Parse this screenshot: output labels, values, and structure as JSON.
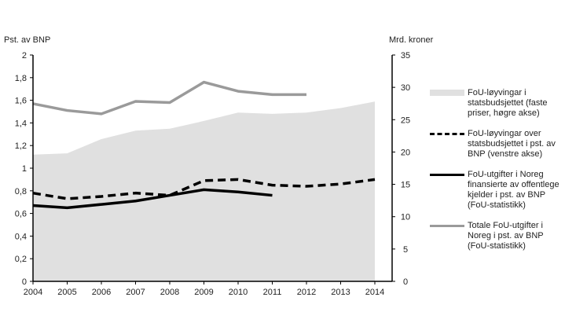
{
  "chart_data": {
    "type": "line",
    "ylabel_left": "Pst. av BNP",
    "ylabel_right": "Mrd. kroner",
    "x": [
      2004,
      2005,
      2006,
      2007,
      2008,
      2009,
      2010,
      2011,
      2012,
      2013,
      2014
    ],
    "ylim_left": [
      0,
      2
    ],
    "ylim_right": [
      0,
      35
    ],
    "yticks_left": [
      "0",
      "0,2",
      "0,4",
      "0,6",
      "0,8",
      "1",
      "1,2",
      "1,4",
      "1,6",
      "1,8",
      "2"
    ],
    "yticks_right": [
      "0",
      "5",
      "10",
      "15",
      "20",
      "25",
      "30",
      "35"
    ],
    "grid": false,
    "legend_position": "right",
    "series": [
      {
        "name": "FoU-løyvingar i statsbudsjettet (faste priser, høgre akse)",
        "axis": "right",
        "style": "area",
        "color": "#e0e0e0",
        "values": [
          19.6,
          19.8,
          22.0,
          23.3,
          23.6,
          24.8,
          26.1,
          25.9,
          26.1,
          26.8,
          27.8
        ]
      },
      {
        "name": "FoU-løyvingar over statsbudsjettet i pst. av BNP (venstre akse)",
        "axis": "left",
        "style": "dashed",
        "color": "#000000",
        "values": [
          0.78,
          0.73,
          0.75,
          0.78,
          0.76,
          0.89,
          0.9,
          0.85,
          0.84,
          0.86,
          0.9
        ]
      },
      {
        "name": "FoU-utgifter i Noreg finansierte av offentlege kjelder i pst. av BNP (FoU-statistikk)",
        "axis": "left",
        "style": "solid",
        "color": "#000000",
        "values": [
          0.67,
          0.65,
          0.68,
          0.71,
          0.76,
          0.81,
          0.79,
          0.76,
          null,
          null,
          null
        ]
      },
      {
        "name": "Totale FoU-utgifter i Noreg i pst. av BNP (FoU-statistikk)",
        "axis": "left",
        "style": "solid",
        "color": "#9a9a9a",
        "values": [
          1.57,
          1.51,
          1.48,
          1.59,
          1.58,
          1.76,
          1.68,
          1.65,
          1.65,
          null,
          null
        ]
      }
    ]
  }
}
